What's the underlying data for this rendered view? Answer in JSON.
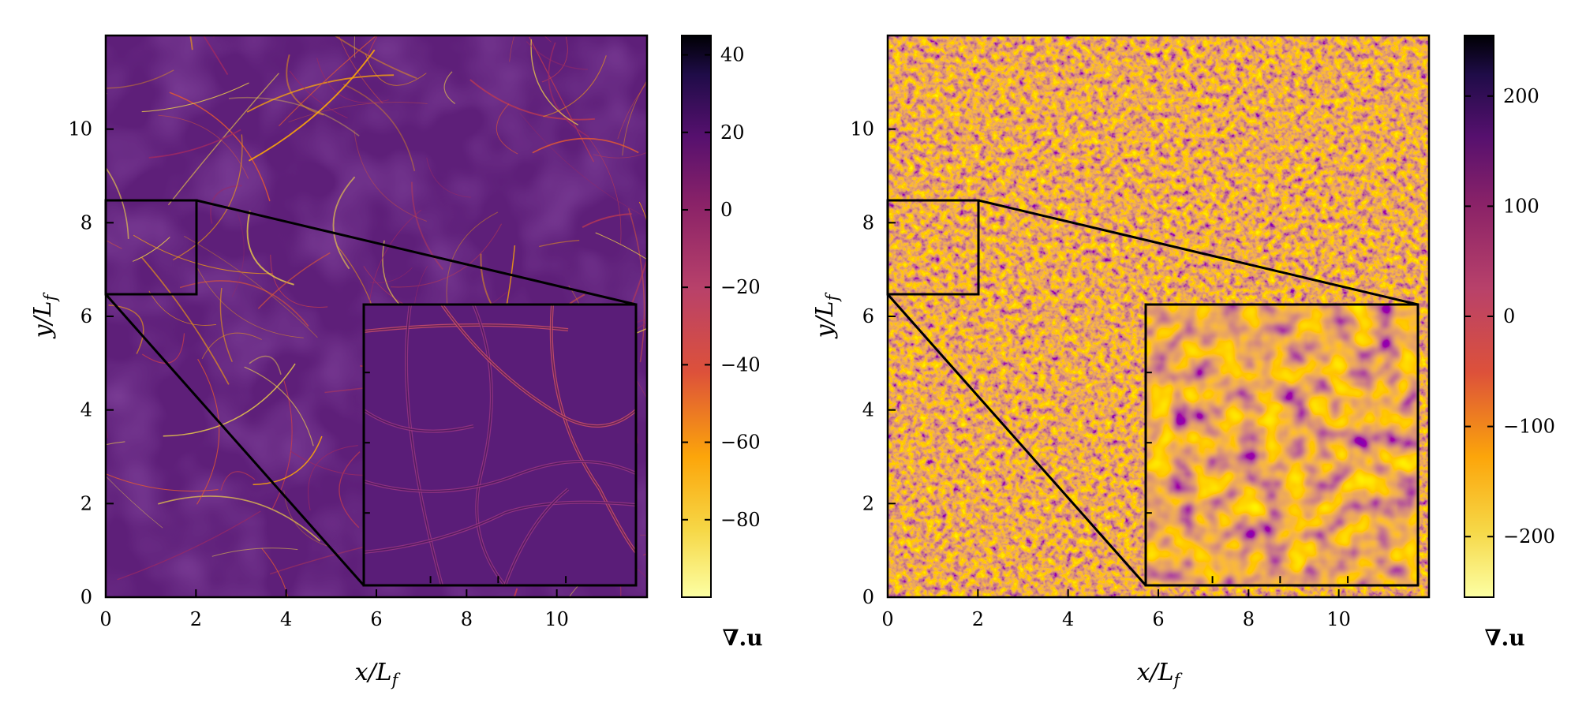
{
  "chart_data": [
    {
      "type": "heatmap",
      "panel": "left",
      "xlabel": "x/L_f",
      "ylabel": "y/L_f",
      "xlim": [
        0,
        12
      ],
      "ylim": [
        0,
        12
      ],
      "xticks": [
        0,
        2,
        4,
        6,
        8,
        10
      ],
      "yticks": [
        0,
        2,
        4,
        6,
        8,
        10
      ],
      "colorbar": {
        "label": "∇.u",
        "range": [
          -100,
          45
        ],
        "ticks": [
          40,
          20,
          0,
          -20,
          -40,
          -60,
          -80
        ],
        "tick_labels": [
          "40",
          "20",
          "0",
          "−20",
          "−40",
          "−60",
          "−80"
        ],
        "colormap": "inferno_r"
      },
      "zoom_region": {
        "x": [
          0,
          2
        ],
        "y": [
          6.5,
          8.5
        ]
      },
      "inset_extent": {
        "x": [
          5.7,
          11.7
        ],
        "y": [
          0.3,
          6.3
        ]
      },
      "field_description": "mostly near-zero divergence with thin bright negative shock filaments",
      "colors": {
        "background": "#5e1f79",
        "filament": "#f6d746",
        "frame": "#000000"
      }
    },
    {
      "type": "heatmap",
      "panel": "right",
      "xlabel": "x/L_f",
      "ylabel": "y/L_f",
      "xlim": [
        0,
        12
      ],
      "ylim": [
        0,
        12
      ],
      "xticks": [
        0,
        2,
        4,
        6,
        8,
        10
      ],
      "yticks": [
        0,
        2,
        4,
        6,
        8,
        10
      ],
      "colorbar": {
        "label": "∇.u",
        "range": [
          -255,
          255
        ],
        "ticks": [
          200,
          100,
          0,
          -100,
          -200
        ],
        "tick_labels": [
          "200",
          "100",
          "0",
          "−100",
          "−200"
        ],
        "colormap": "inferno_r"
      },
      "zoom_region": {
        "x": [
          0,
          2
        ],
        "y": [
          6.5,
          8.5
        ]
      },
      "inset_extent": {
        "x": [
          5.7,
          11.7
        ],
        "y": [
          0.3,
          6.3
        ]
      },
      "field_description": "small-scale turbulent divergence field with mixed positive and negative fluctuations",
      "colors": {
        "background": "#c34d57",
        "highlight": "#f5a31f",
        "dark": "#4a1171",
        "frame": "#000000"
      }
    }
  ]
}
